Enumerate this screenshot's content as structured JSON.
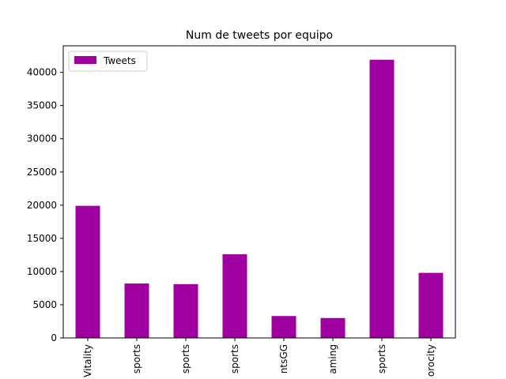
{
  "chart_data": {
    "type": "bar",
    "title": "Num de tweets por equipo",
    "xlabel": "",
    "ylabel": "",
    "categories": [
      "Vitality",
      "sports",
      "sports",
      "sports",
      "ntsGG",
      "aming",
      "sports",
      "orocity"
    ],
    "series": [
      {
        "name": "Tweets",
        "color": "#a000a0",
        "values": [
          19900,
          8200,
          8100,
          12600,
          3300,
          3000,
          41900,
          9800
        ]
      }
    ],
    "yticks": [
      0,
      5000,
      10000,
      15000,
      20000,
      25000,
      30000,
      35000,
      40000
    ],
    "ylim": [
      0,
      44000
    ],
    "grid": false,
    "legend_position": "top-left"
  }
}
